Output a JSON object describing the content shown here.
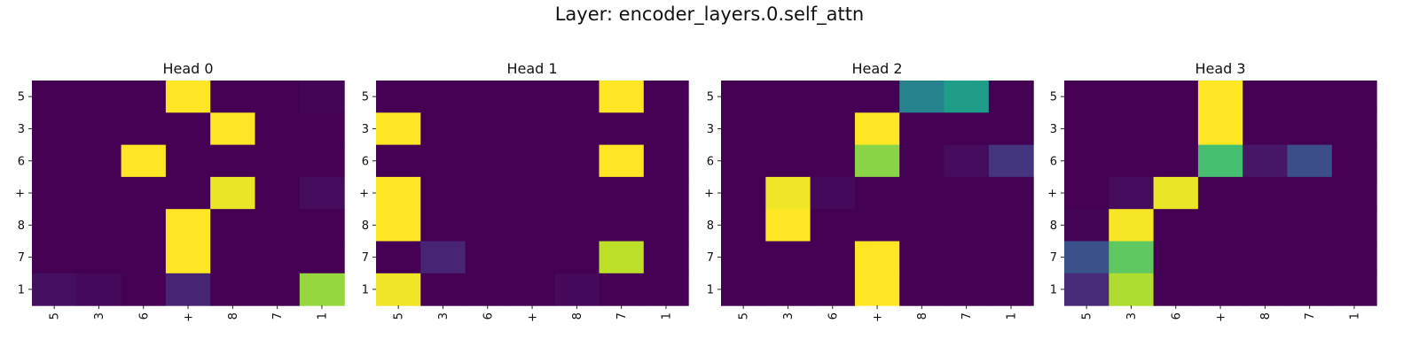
{
  "figure": {
    "title": "Layer: encoder_layers.0.self_attn"
  },
  "colormap": {
    "name": "viridis",
    "stops": [
      "#440154",
      "#482878",
      "#3e4989",
      "#31688e",
      "#26828e",
      "#1f9e89",
      "#35b779",
      "#6ece58",
      "#b5de2b",
      "#fde725"
    ]
  },
  "chart_data": [
    {
      "type": "heatmap",
      "title": "Head 0",
      "x_labels": [
        "5",
        "3",
        "6",
        "+",
        "8",
        "7",
        "1"
      ],
      "y_labels": [
        "5",
        "3",
        "6",
        "+",
        "8",
        "7",
        "1"
      ],
      "vmin": 0,
      "vmax": 1,
      "values": [
        [
          0.0,
          0.0,
          0.0,
          1.0,
          0.0,
          0.0,
          0.01
        ],
        [
          0.0,
          0.0,
          0.0,
          0.0,
          1.0,
          0.0,
          0.0
        ],
        [
          0.0,
          0.0,
          1.0,
          0.0,
          0.0,
          0.0,
          0.0
        ],
        [
          0.0,
          0.0,
          0.0,
          0.0,
          0.97,
          0.0,
          0.03
        ],
        [
          0.0,
          0.0,
          0.0,
          1.0,
          0.0,
          0.0,
          0.0
        ],
        [
          0.0,
          0.0,
          0.0,
          1.0,
          0.0,
          0.0,
          0.0
        ],
        [
          0.04,
          0.02,
          0.0,
          0.1,
          0.0,
          0.0,
          0.84
        ]
      ]
    },
    {
      "type": "heatmap",
      "title": "Head 1",
      "x_labels": [
        "5",
        "3",
        "6",
        "+",
        "8",
        "7",
        "1"
      ],
      "y_labels": [
        "5",
        "3",
        "6",
        "+",
        "8",
        "7",
        "1"
      ],
      "vmin": 0,
      "vmax": 1,
      "values": [
        [
          0.0,
          0.0,
          0.0,
          0.0,
          0.0,
          1.0,
          0.0
        ],
        [
          1.0,
          0.0,
          0.0,
          0.0,
          0.0,
          0.0,
          0.0
        ],
        [
          0.0,
          0.0,
          0.0,
          0.0,
          0.0,
          1.0,
          0.0
        ],
        [
          1.0,
          0.0,
          0.0,
          0.0,
          0.0,
          0.0,
          0.0
        ],
        [
          1.0,
          0.0,
          0.0,
          0.0,
          0.0,
          0.0,
          0.0
        ],
        [
          0.0,
          0.1,
          0.0,
          0.0,
          0.0,
          0.9,
          0.0
        ],
        [
          0.98,
          0.0,
          0.0,
          0.0,
          0.02,
          0.0,
          0.0
        ]
      ]
    },
    {
      "type": "heatmap",
      "title": "Head 2",
      "x_labels": [
        "5",
        "3",
        "6",
        "+",
        "8",
        "7",
        "1"
      ],
      "y_labels": [
        "5",
        "3",
        "6",
        "+",
        "8",
        "7",
        "1"
      ],
      "vmin": 0,
      "vmax": 1,
      "values": [
        [
          0.0,
          0.0,
          0.0,
          0.0,
          0.45,
          0.55,
          0.0
        ],
        [
          0.0,
          0.0,
          0.0,
          1.0,
          0.0,
          0.0,
          0.0
        ],
        [
          0.0,
          0.0,
          0.0,
          0.82,
          0.0,
          0.03,
          0.15
        ],
        [
          0.0,
          0.98,
          0.02,
          0.0,
          0.0,
          0.0,
          0.0
        ],
        [
          0.0,
          1.0,
          0.0,
          0.0,
          0.0,
          0.0,
          0.0
        ],
        [
          0.0,
          0.0,
          0.0,
          1.0,
          0.0,
          0.0,
          0.0
        ],
        [
          0.0,
          0.0,
          0.0,
          1.0,
          0.0,
          0.0,
          0.0
        ]
      ]
    },
    {
      "type": "heatmap",
      "title": "Head 3",
      "x_labels": [
        "5",
        "3",
        "6",
        "+",
        "8",
        "7",
        "1"
      ],
      "y_labels": [
        "5",
        "3",
        "6",
        "+",
        "8",
        "7",
        "1"
      ],
      "vmin": 0,
      "vmax": 1,
      "values": [
        [
          0.0,
          0.0,
          0.0,
          1.0,
          0.0,
          0.0,
          0.0
        ],
        [
          0.0,
          0.0,
          0.0,
          1.0,
          0.0,
          0.0,
          0.0
        ],
        [
          0.0,
          0.0,
          0.0,
          0.7,
          0.06,
          0.24,
          0.0
        ],
        [
          0.0,
          0.03,
          0.97,
          0.0,
          0.0,
          0.0,
          0.0
        ],
        [
          0.01,
          0.99,
          0.0,
          0.0,
          0.0,
          0.0,
          0.0
        ],
        [
          0.25,
          0.75,
          0.0,
          0.0,
          0.0,
          0.0,
          0.0
        ],
        [
          0.12,
          0.88,
          0.0,
          0.0,
          0.0,
          0.0,
          0.0
        ]
      ]
    }
  ]
}
